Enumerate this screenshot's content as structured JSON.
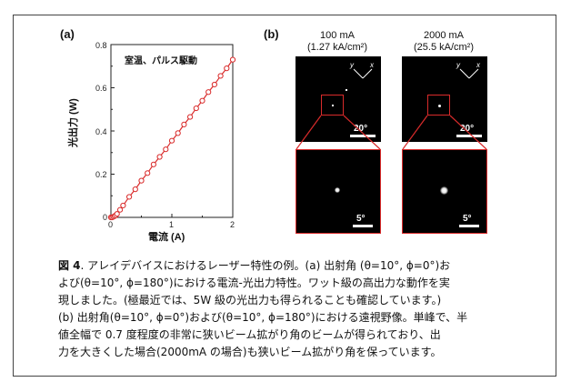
{
  "panel_a_label": "(a)",
  "panel_b_label": "(b)",
  "chart_data": {
    "type": "line",
    "annotation": "室温、パルス駆動",
    "xlabel": "電流 (A)",
    "ylabel": "光出力 (W)",
    "xlim": [
      0,
      2
    ],
    "ylim": [
      0,
      0.8
    ],
    "xticks": [
      "0",
      "1",
      "2"
    ],
    "yticks": [
      "0",
      "0.2",
      "0.4",
      "0.6",
      "0.8"
    ],
    "series_color": "#d92b2b",
    "x": [
      0.0,
      0.02,
      0.04,
      0.06,
      0.08,
      0.1,
      0.15,
      0.2,
      0.3,
      0.4,
      0.5,
      0.6,
      0.7,
      0.8,
      0.9,
      1.0,
      1.1,
      1.2,
      1.3,
      1.4,
      1.5,
      1.6,
      1.7,
      1.8,
      1.9,
      2.0
    ],
    "y": [
      0.0,
      0.0,
      0.003,
      0.006,
      0.01,
      0.016,
      0.035,
      0.055,
      0.095,
      0.13,
      0.17,
      0.205,
      0.245,
      0.28,
      0.315,
      0.355,
      0.39,
      0.43,
      0.465,
      0.505,
      0.54,
      0.58,
      0.615,
      0.655,
      0.69,
      0.73
    ]
  },
  "images": {
    "left_title_line1": "100 mA",
    "left_title_line2": "(1.27 kA/cm²)",
    "right_title_line1": "2000 mA",
    "right_title_line2": "(25.5 kA/cm²)",
    "scale_large": "20°",
    "scale_small": "5°",
    "axis_y": "y",
    "axis_x": "x"
  },
  "caption": {
    "fig_label": "図 4",
    "line1": ". アレイデバイスにおけるレーザー特性の例。(a) 出射角 (θ=10°, ϕ=0°)お",
    "line2": "よび(θ=10°, ϕ=180°)における電流-光出力特性。ワット級の高出力な動作を実",
    "line3": "現しました。(極最近では、5W 級の光出力も得られることも確認しています。)",
    "line4": "(b) 出射角(θ=10°, ϕ=0°)および(θ=10°, ϕ=180°)における遠視野像。単峰で、半",
    "line5": "値全幅で 0.7 度程度の非常に狭いビーム拡がり角のビームが得られており、出",
    "line6": "力を大きくした場合(2000mA の場合)も狭いビーム拡がり角を保っています。"
  }
}
